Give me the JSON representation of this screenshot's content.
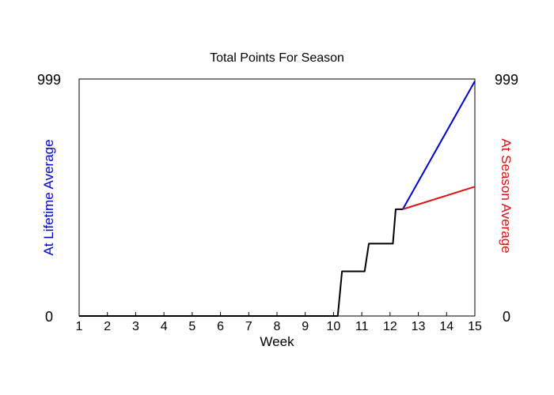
{
  "chart_data": {
    "type": "line",
    "title": "Total Points For Season",
    "xlabel": "Week",
    "ylabel_left": "At Lifetime Average",
    "ylabel_right": "At Season Average",
    "colors": {
      "actual": "#000000",
      "lifetime": "#0000cc",
      "season": "#dd1111"
    },
    "xlim": [
      1,
      15
    ],
    "ylim": [
      0,
      999
    ],
    "xticks": [
      1,
      2,
      3,
      4,
      5,
      6,
      7,
      8,
      9,
      10,
      11,
      12,
      13,
      14,
      15
    ],
    "left_axis": {
      "min_label": "0",
      "max_label": "999"
    },
    "right_axis": {
      "min_label": "0",
      "max_label": "999"
    },
    "grid": false,
    "series": [
      {
        "key": "actual",
        "points": [
          [
            1,
            0
          ],
          [
            10.15,
            0
          ],
          [
            10.3,
            188
          ],
          [
            11.1,
            188
          ],
          [
            11.25,
            305
          ],
          [
            12.1,
            305
          ],
          [
            12.2,
            450
          ],
          [
            12.45,
            450
          ]
        ]
      },
      {
        "key": "lifetime",
        "points": [
          [
            12.45,
            450
          ],
          [
            15,
            990
          ]
        ]
      },
      {
        "key": "season",
        "points": [
          [
            12.45,
            450
          ],
          [
            15,
            545
          ]
        ]
      }
    ]
  }
}
